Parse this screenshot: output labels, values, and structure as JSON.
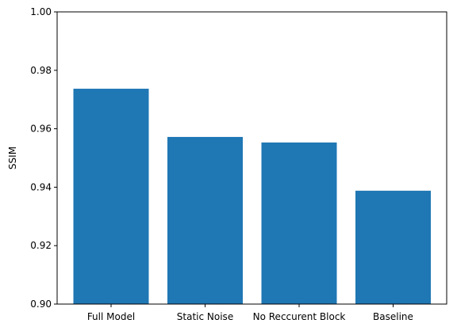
{
  "chart_data": {
    "type": "bar",
    "categories": [
      "Full Model",
      "Static Noise",
      "No Reccurent Block",
      "Baseline"
    ],
    "values": [
      0.9737,
      0.9572,
      0.9553,
      0.9388
    ],
    "title": "",
    "xlabel": "",
    "ylabel": "SSIM",
    "ylim": [
      0.9,
      1.0
    ],
    "yticks": [
      "0.90",
      "0.92",
      "0.94",
      "0.96",
      "0.98",
      "1.00"
    ],
    "grid": false,
    "bar_color": "#1f77b4"
  }
}
